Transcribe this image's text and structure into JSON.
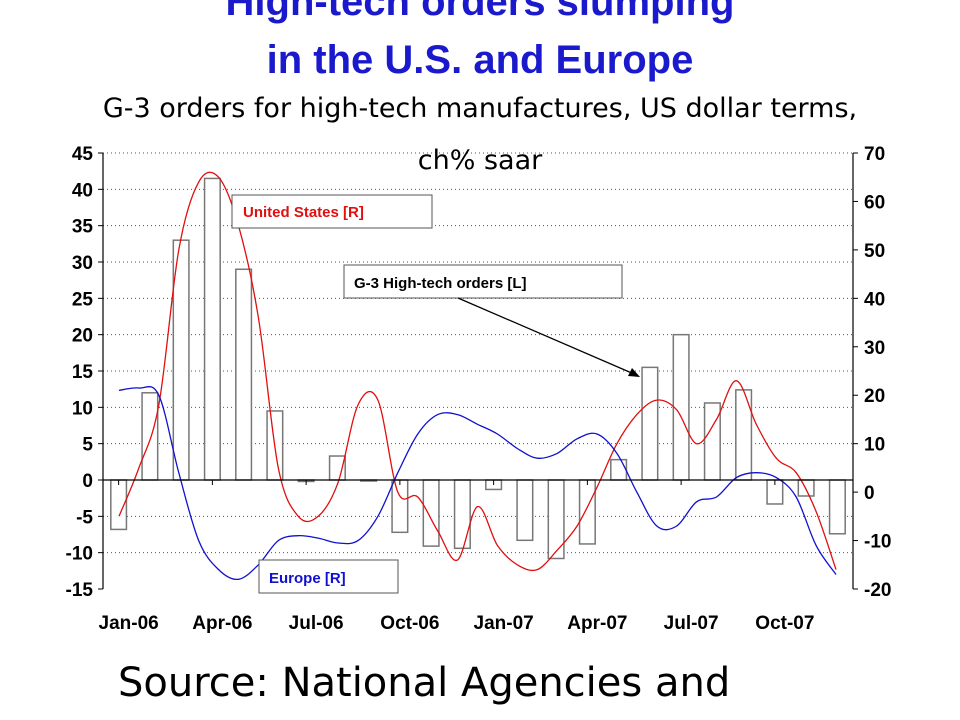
{
  "title": {
    "line1": "High-tech orders slumping",
    "line2": "in the U.S. and Europe"
  },
  "subtitle": {
    "line1": "G-3 orders for high-tech manufactures, US dollar terms,",
    "line2": "ch% saar"
  },
  "source": "Source: National Agencies and",
  "colors": {
    "title": "#1a1acc",
    "bars": "#ffffff",
    "bar_edge": "#777777",
    "united_states": "#e01010",
    "europe": "#1010d0"
  },
  "chart_data": {
    "type": "bar",
    "x_tick_labels": [
      "Jan-06",
      "Apr-06",
      "Jul-06",
      "Oct-06",
      "Jan-07",
      "Apr-07",
      "Jul-07",
      "Oct-07"
    ],
    "left_axis": {
      "ylim": [
        -15,
        45
      ],
      "ticks": [
        -15,
        -10,
        -5,
        0,
        5,
        10,
        15,
        20,
        25,
        30,
        35,
        40,
        45
      ]
    },
    "right_axis": {
      "ylim": [
        -20,
        70
      ],
      "ticks": [
        -20,
        -10,
        0,
        10,
        20,
        30,
        40,
        50,
        60,
        70
      ]
    },
    "grid": "horizontal",
    "series": [
      {
        "name": "G-3 High-tech orders [L]",
        "type": "bar",
        "axis": "left",
        "values": [
          -6.8,
          12,
          33,
          41.5,
          29,
          9.5,
          -0.2,
          3.3,
          0,
          -7.2,
          -9.1,
          -9.4,
          -1.3,
          -8.3,
          -10.8,
          -8.8,
          2.8,
          15.5,
          20,
          10.6,
          12.4,
          -3.3,
          -2.2,
          -7.4
        ]
      },
      {
        "name": "United States [R]",
        "type": "line",
        "axis": "right",
        "values": [
          -5,
          5,
          18,
          50,
          64,
          65,
          55,
          36,
          5,
          -5,
          -5,
          2,
          18,
          19,
          0,
          -1,
          -8,
          -14,
          -3,
          -11,
          -15,
          -16,
          -12,
          -7,
          1,
          10,
          16,
          19,
          17,
          10,
          15,
          23,
          14,
          7,
          4,
          -4,
          -16
        ]
      },
      {
        "name": "Europe [R]",
        "type": "line",
        "axis": "right",
        "values": [
          21,
          21.5,
          20,
          4,
          -10,
          -16,
          -18,
          -15,
          -10,
          -9,
          -9.5,
          -10.5,
          -10,
          -5,
          4,
          12,
          16,
          16,
          14,
          12,
          9,
          7,
          8,
          11,
          12,
          8,
          0,
          -7,
          -7,
          -2,
          -1,
          3,
          4,
          3,
          -1,
          -11,
          -17
        ]
      }
    ],
    "annotations": [
      "United States [R]",
      "G-3 High-tech orders [L]",
      "Europe [R]"
    ]
  }
}
